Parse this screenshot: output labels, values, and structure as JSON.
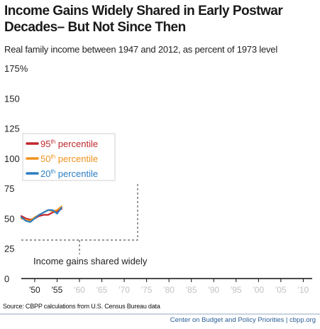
{
  "chart_data": {
    "type": "line",
    "title": "Income Gains Widely Shared in Early Postwar Decades– But Not Since Then",
    "subtitle": "Real family income between 1947 and 2012, as percent of 1973 level",
    "xlabel": "",
    "ylabel": "",
    "xlim": [
      1947,
      2012
    ],
    "ylim": [
      0,
      175
    ],
    "y_ticks": [
      {
        "value": 0,
        "label": "0"
      },
      {
        "value": 25,
        "label": "25"
      },
      {
        "value": 50,
        "label": "50"
      },
      {
        "value": 75,
        "label": "75"
      },
      {
        "value": 100,
        "label": "100"
      },
      {
        "value": 125,
        "label": "125"
      },
      {
        "value": 150,
        "label": "150"
      },
      {
        "value": 175,
        "label": "175%"
      }
    ],
    "x_ticks": [
      {
        "value": 1950,
        "label": "'50"
      },
      {
        "value": 1955,
        "label": "'55"
      },
      {
        "value": 1960,
        "label": "'60"
      },
      {
        "value": 1965,
        "label": "'65"
      },
      {
        "value": 1970,
        "label": "'70"
      },
      {
        "value": 1975,
        "label": "'75"
      },
      {
        "value": 1980,
        "label": "'80"
      },
      {
        "value": 1985,
        "label": "'85"
      },
      {
        "value": 1990,
        "label": "'90"
      },
      {
        "value": 1995,
        "label": "'95"
      },
      {
        "value": 2000,
        "label": "'00"
      },
      {
        "value": 2005,
        "label": "'05"
      },
      {
        "value": 2010,
        "label": "'10"
      }
    ],
    "x_ticks_highlighted": [
      1950,
      1955
    ],
    "grid": false,
    "legend_position": "left",
    "series": [
      {
        "name": "95th percentile",
        "color": "#c1272d",
        "x": [
          1947,
          1948,
          1949,
          1950,
          1951,
          1952,
          1953,
          1954,
          1955,
          1956
        ],
        "y": [
          52,
          50,
          49,
          50,
          52,
          53,
          53,
          55,
          56,
          58
        ]
      },
      {
        "name": "50th percentile",
        "color": "#f0931e",
        "x": [
          1947,
          1948,
          1949,
          1950,
          1951,
          1952,
          1953,
          1954,
          1955,
          1956
        ],
        "y": [
          50,
          49,
          48,
          51,
          53,
          55,
          57,
          56,
          57,
          60
        ]
      },
      {
        "name": "20th percentile",
        "color": "#2e7ec2",
        "x": [
          1947,
          1948,
          1949,
          1950,
          1951,
          1952,
          1953,
          1954,
          1955,
          1956
        ],
        "y": [
          51,
          48,
          47,
          50,
          53,
          55,
          57,
          57,
          54,
          59
        ]
      }
    ],
    "legend": [
      {
        "base": "95",
        "sup": "th",
        "rest": " percentile",
        "color": "#c1272d"
      },
      {
        "base": "50",
        "sup": "th",
        "rest": " percentile",
        "color": "#f0931e"
      },
      {
        "base": "20",
        "sup": "th",
        "rest": " percentile",
        "color": "#2e7ec2"
      }
    ],
    "annotation": {
      "text": "Income gains shared widely",
      "x_start": 1947,
      "x_end": 1973,
      "level": 32,
      "top": 80,
      "pointer_x": 1960
    },
    "colors": {
      "axis": "#111111",
      "dash": "#333333"
    }
  },
  "source": "Source: CBPP calculations from U.S. Census Bureau data",
  "credit": "Center on Budget and Policy Priorities | cbpp.org"
}
